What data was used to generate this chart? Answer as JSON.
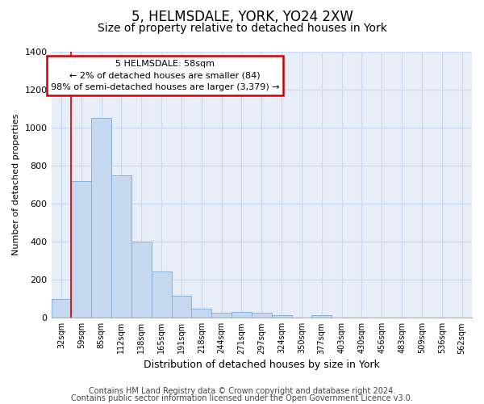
{
  "title": "5, HELMSDALE, YORK, YO24 2XW",
  "subtitle": "Size of property relative to detached houses in York",
  "xlabel": "Distribution of detached houses by size in York",
  "ylabel": "Number of detached properties",
  "categories": [
    "32sqm",
    "59sqm",
    "85sqm",
    "112sqm",
    "138sqm",
    "165sqm",
    "191sqm",
    "218sqm",
    "244sqm",
    "271sqm",
    "297sqm",
    "324sqm",
    "350sqm",
    "377sqm",
    "403sqm",
    "430sqm",
    "456sqm",
    "483sqm",
    "509sqm",
    "536sqm",
    "562sqm"
  ],
  "values": [
    100,
    720,
    1050,
    750,
    400,
    245,
    115,
    50,
    25,
    30,
    25,
    15,
    0,
    15,
    0,
    0,
    0,
    0,
    0,
    0,
    0
  ],
  "bar_color": "#c5d8f0",
  "bar_edge_color": "#7aadd4",
  "annotation_box_text": "5 HELMSDALE: 58sqm\n← 2% of detached houses are smaller (84)\n98% of semi-detached houses are larger (3,379) →",
  "annotation_box_color": "#ffffff",
  "annotation_box_edge_color": "#cc0000",
  "vline_color": "#cc0000",
  "ylim": [
    0,
    1400
  ],
  "yticks": [
    0,
    200,
    400,
    600,
    800,
    1000,
    1200,
    1400
  ],
  "grid_color": "#c8d8ee",
  "background_color": "#e8eef8",
  "footer_line1": "Contains HM Land Registry data © Crown copyright and database right 2024.",
  "footer_line2": "Contains public sector information licensed under the Open Government Licence v3.0.",
  "title_fontsize": 12,
  "subtitle_fontsize": 10,
  "annotation_fontsize": 8,
  "footer_fontsize": 7,
  "ylabel_fontsize": 8,
  "xlabel_fontsize": 9
}
